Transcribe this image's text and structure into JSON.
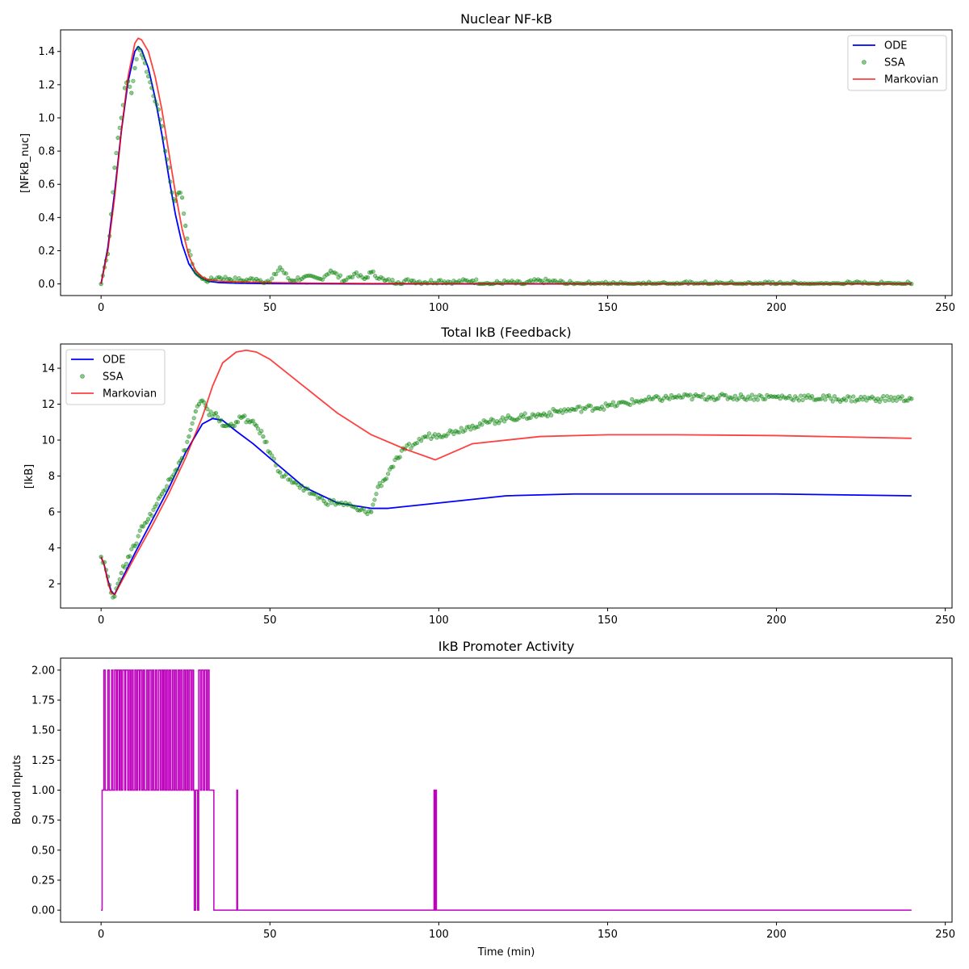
{
  "colors": {
    "ode": "#0000ff",
    "ssa": "#008000",
    "markovian": "#ff0000",
    "promoter": "#bf00bf",
    "axis": "#000000",
    "background": "#ffffff"
  },
  "chart_data": [
    {
      "id": "nfkb",
      "type": "line",
      "title": "Nuclear NF-kB",
      "xlabel": "",
      "ylabel": "[NFkB_nuc]",
      "xlim": [
        -12,
        252
      ],
      "ylim": [
        -0.07,
        1.53
      ],
      "xticks": [
        0,
        50,
        100,
        150,
        200,
        250
      ],
      "yticks": [
        0.0,
        0.2,
        0.4,
        0.6,
        0.8,
        1.0,
        1.2,
        1.4
      ],
      "ytick_labels": [
        "0.0",
        "0.2",
        "0.4",
        "0.6",
        "0.8",
        "1.0",
        "1.2",
        "1.4"
      ],
      "legend": {
        "placement": "top-right",
        "entries": [
          "ODE",
          "SSA",
          "Markovian"
        ]
      },
      "series": [
        {
          "name": "ODE",
          "style": "line",
          "color": "#0000ff",
          "x": [
            0,
            2,
            4,
            6,
            8,
            10,
            11,
            12,
            14,
            16,
            18,
            20,
            22,
            24,
            26,
            28,
            30,
            32,
            35,
            40,
            50,
            60,
            80,
            100,
            150,
            200,
            240
          ],
          "y": [
            0.0,
            0.22,
            0.55,
            0.92,
            1.22,
            1.4,
            1.43,
            1.41,
            1.3,
            1.12,
            0.9,
            0.65,
            0.42,
            0.24,
            0.12,
            0.06,
            0.03,
            0.015,
            0.008,
            0.004,
            0.002,
            0.001,
            0.0,
            0.0,
            0.0,
            0.0,
            0.0
          ]
        },
        {
          "name": "SSA",
          "style": "scatter",
          "color": "#008000",
          "x": [
            0,
            1,
            2,
            3,
            4,
            5,
            6,
            7,
            8,
            9,
            10,
            11,
            12,
            13,
            14,
            15,
            16,
            17,
            18,
            19,
            20,
            21,
            22,
            23,
            24,
            25,
            26,
            27,
            28,
            29,
            30,
            32,
            35,
            38,
            42,
            46,
            50,
            53,
            56,
            60,
            65,
            68,
            72,
            75,
            78,
            80,
            84,
            88,
            92,
            96,
            100,
            105,
            110,
            115,
            120,
            125,
            130,
            140,
            150,
            160,
            170,
            180,
            190,
            200,
            210,
            220,
            230,
            240
          ],
          "y": [
            0.0,
            0.1,
            0.18,
            0.42,
            0.7,
            0.88,
            1.0,
            1.18,
            1.22,
            1.15,
            1.3,
            1.42,
            1.38,
            1.33,
            1.25,
            1.18,
            1.1,
            1.05,
            0.95,
            0.8,
            0.7,
            0.55,
            0.5,
            0.55,
            0.52,
            0.35,
            0.2,
            0.12,
            0.07,
            0.05,
            0.03,
            0.02,
            0.04,
            0.03,
            0.02,
            0.03,
            0.01,
            0.1,
            0.02,
            0.04,
            0.03,
            0.08,
            0.02,
            0.06,
            0.03,
            0.07,
            0.02,
            0.01,
            0.02,
            0.01,
            0.02,
            0.01,
            0.02,
            0.0,
            0.01,
            0.0,
            0.02,
            0.0,
            0.0,
            0.0,
            0.0,
            0.0,
            0.0,
            0.0,
            0.0,
            0.0,
            0.0,
            0.0
          ]
        },
        {
          "name": "Markovian",
          "style": "line",
          "color": "#ff0000",
          "x": [
            0,
            2,
            4,
            6,
            8,
            10,
            11,
            12,
            14,
            16,
            18,
            20,
            22,
            24,
            26,
            28,
            30,
            32,
            34,
            36,
            40,
            50,
            60,
            80,
            100,
            150,
            200,
            240
          ],
          "y": [
            0.0,
            0.2,
            0.52,
            0.92,
            1.25,
            1.45,
            1.48,
            1.47,
            1.4,
            1.25,
            1.05,
            0.8,
            0.55,
            0.33,
            0.17,
            0.08,
            0.04,
            0.025,
            0.02,
            0.015,
            0.012,
            0.008,
            0.005,
            0.002,
            0.001,
            0.0,
            0.0,
            0.0
          ]
        }
      ]
    },
    {
      "id": "ikb",
      "type": "line",
      "title": "Total IkB (Feedback)",
      "xlabel": "",
      "ylabel": "[IkB]",
      "xlim": [
        -12,
        252
      ],
      "ylim": [
        0.65,
        15.35
      ],
      "xticks": [
        0,
        50,
        100,
        150,
        200,
        250
      ],
      "yticks": [
        2,
        4,
        6,
        8,
        10,
        12,
        14
      ],
      "ytick_labels": [
        "2",
        "4",
        "6",
        "8",
        "10",
        "12",
        "14"
      ],
      "legend": {
        "placement": "top-left",
        "entries": [
          "ODE",
          "SSA",
          "Markovian"
        ]
      },
      "series": [
        {
          "name": "ODE",
          "style": "line",
          "color": "#0000ff",
          "x": [
            0,
            1,
            2,
            3,
            4,
            6,
            10,
            15,
            20,
            25,
            30,
            33,
            36,
            40,
            45,
            50,
            55,
            60,
            70,
            80,
            85,
            100,
            120,
            140,
            160,
            180,
            200,
            220,
            240
          ],
          "y": [
            3.5,
            3.0,
            2.2,
            1.6,
            1.4,
            2.2,
            3.7,
            5.5,
            7.3,
            9.3,
            10.9,
            11.2,
            11.1,
            10.5,
            9.8,
            9.0,
            8.2,
            7.4,
            6.5,
            6.2,
            6.2,
            6.5,
            6.9,
            7.0,
            7.0,
            7.0,
            7.0,
            6.95,
            6.9
          ]
        },
        {
          "name": "SSA",
          "style": "scatter",
          "color": "#008000",
          "x": [
            0,
            1,
            2,
            3,
            4,
            5,
            6,
            8,
            10,
            12,
            14,
            16,
            18,
            20,
            22,
            24,
            26,
            28,
            29,
            30,
            32,
            34,
            36,
            38,
            40,
            42,
            44,
            46,
            48,
            50,
            53,
            56,
            60,
            63,
            66,
            70,
            73,
            76,
            80,
            82,
            84,
            86,
            88,
            90,
            93,
            96,
            100,
            105,
            110,
            115,
            120,
            125,
            130,
            135,
            140,
            150,
            160,
            170,
            180,
            190,
            200,
            210,
            220,
            230,
            240
          ],
          "y": [
            3.5,
            3.2,
            2.4,
            1.5,
            1.3,
            2.0,
            2.6,
            3.5,
            4.1,
            5.2,
            5.6,
            6.3,
            7.0,
            7.8,
            8.3,
            9.0,
            10.2,
            11.6,
            12.0,
            12.2,
            11.4,
            11.5,
            10.8,
            10.8,
            11.0,
            11.3,
            11.0,
            10.8,
            10.2,
            9.3,
            8.2,
            7.8,
            7.2,
            7.0,
            6.6,
            6.5,
            6.4,
            6.1,
            6.0,
            7.4,
            7.8,
            8.5,
            9.0,
            9.5,
            9.8,
            10.2,
            10.3,
            10.5,
            10.8,
            11.0,
            11.2,
            11.3,
            11.4,
            11.6,
            11.7,
            11.9,
            12.2,
            12.4,
            12.4,
            12.4,
            12.4,
            12.35,
            12.3,
            12.3,
            12.3
          ]
        },
        {
          "name": "Markovian",
          "style": "line",
          "color": "#ff0000",
          "x": [
            0,
            1,
            2,
            3,
            4,
            6,
            10,
            15,
            20,
            25,
            30,
            33,
            36,
            40,
            43,
            46,
            50,
            60,
            70,
            80,
            90,
            99,
            110,
            130,
            150,
            170,
            200,
            240
          ],
          "y": [
            3.5,
            3.0,
            2.1,
            1.5,
            1.4,
            2.1,
            3.5,
            5.2,
            7.0,
            9.0,
            11.3,
            13.0,
            14.3,
            14.9,
            15.0,
            14.9,
            14.5,
            13.0,
            11.5,
            10.3,
            9.5,
            8.9,
            9.8,
            10.2,
            10.3,
            10.3,
            10.25,
            10.1
          ]
        }
      ]
    },
    {
      "id": "promoter",
      "type": "line",
      "title": "IkB Promoter Activity",
      "xlabel": "Time (min)",
      "ylabel": "Bound Inputs",
      "xlim": [
        -12,
        252
      ],
      "ylim": [
        -0.1,
        2.1
      ],
      "xticks": [
        0,
        50,
        100,
        150,
        200,
        250
      ],
      "yticks": [
        0.0,
        0.25,
        0.5,
        0.75,
        1.0,
        1.25,
        1.5,
        1.75,
        2.0
      ],
      "ytick_labels": [
        "0.00",
        "0.25",
        "0.50",
        "0.75",
        "1.00",
        "1.25",
        "1.50",
        "1.75",
        "2.00"
      ],
      "series": [
        {
          "name": "",
          "style": "step",
          "color": "#bf00bf",
          "x": [
            0,
            0.3,
            0.8,
            1.2,
            2.0,
            2.4,
            3.1,
            3.5,
            4.0,
            4.5,
            4.8,
            5.3,
            5.6,
            6.0,
            6.4,
            7.0,
            7.3,
            7.9,
            8.3,
            8.7,
            9.1,
            9.5,
            10.0,
            10.4,
            10.8,
            11.3,
            11.6,
            12.1,
            12.5,
            12.9,
            13.5,
            13.9,
            14.3,
            14.8,
            15.2,
            15.6,
            16.1,
            16.5,
            17.0,
            17.5,
            17.9,
            18.3,
            18.6,
            19.0,
            19.4,
            19.8,
            20.2,
            20.6,
            21.1,
            21.5,
            21.9,
            22.3,
            22.8,
            23.2,
            23.6,
            24.0,
            24.5,
            24.9,
            25.3,
            25.7,
            26.1,
            26.6,
            27.0,
            27.4,
            27.6,
            28.0,
            28.6,
            28.9,
            29.4,
            29.8,
            30.3,
            30.7,
            31.2,
            31.6,
            32.0,
            32.5,
            33.4,
            40.2,
            40.4,
            40.6,
            98.6,
            98.9,
            99.1,
            99.3,
            99.6,
            240
          ],
          "y": [
            0,
            1,
            2,
            1,
            2,
            1,
            2,
            1,
            2,
            1,
            2,
            1,
            2,
            1,
            2,
            1,
            2,
            1,
            2,
            1,
            2,
            1,
            2,
            1,
            2,
            1,
            2,
            1,
            2,
            1,
            2,
            1,
            2,
            1,
            2,
            1,
            2,
            1,
            2,
            1,
            2,
            1,
            2,
            1,
            2,
            1,
            2,
            1,
            2,
            1,
            2,
            1,
            2,
            1,
            2,
            1,
            2,
            1,
            2,
            1,
            2,
            1,
            2,
            1,
            0,
            1,
            0,
            2,
            1,
            2,
            1,
            2,
            1,
            2,
            1,
            1,
            0,
            1,
            0,
            0,
            1,
            0,
            1,
            0,
            0,
            0
          ]
        }
      ]
    }
  ]
}
